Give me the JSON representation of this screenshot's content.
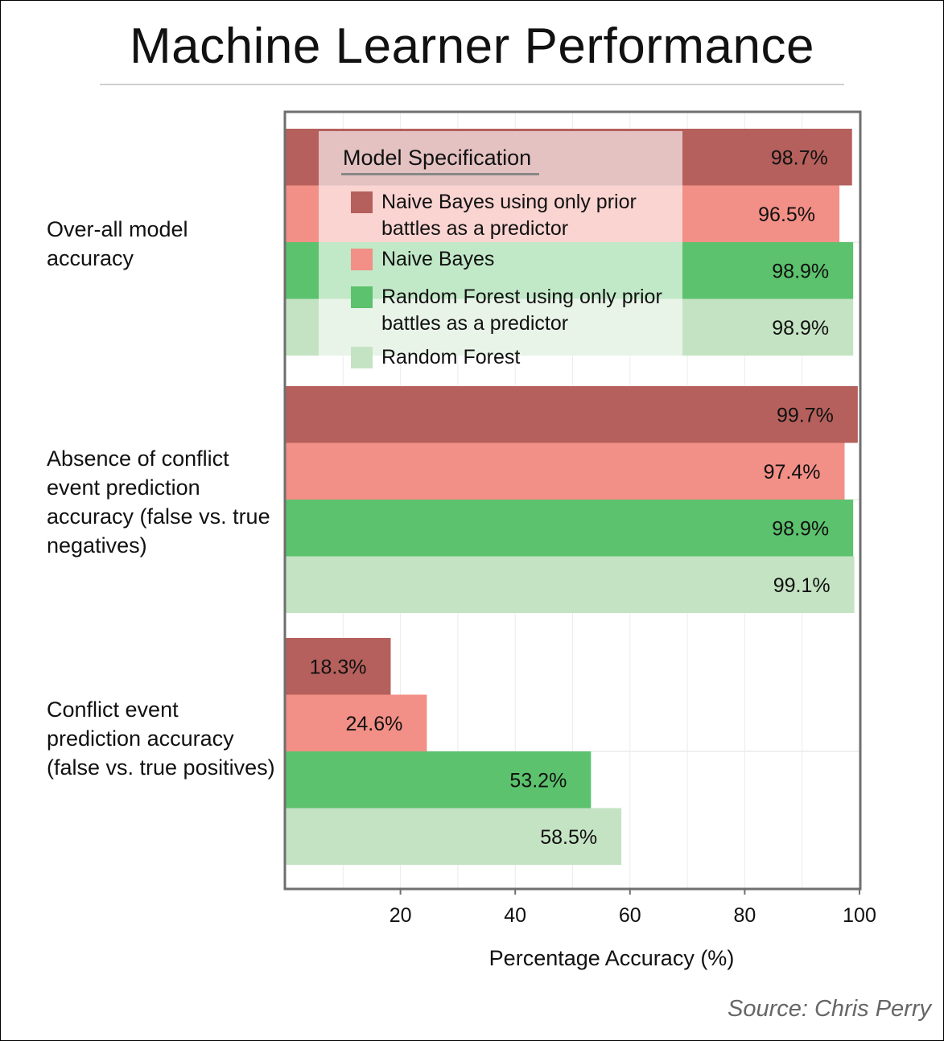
{
  "title": "Machine Learner Performance",
  "source": "Source: Chris Perry",
  "legend": {
    "title": "Model Specification",
    "items": [
      {
        "label": "Naive Bayes using only prior battles as a predictor",
        "color": "#b5605c"
      },
      {
        "label": "Naive Bayes",
        "color": "#f28f86"
      },
      {
        "label": "Random Forest using only prior battles as a predictor",
        "color": "#5cc26d"
      },
      {
        "label": "Random Forest",
        "color": "#c4e3c3"
      }
    ]
  },
  "groups": [
    {
      "label": "Over-all model accuracy"
    },
    {
      "label": "Absence of conflict event prediction accuracy (false vs. true negatives)"
    },
    {
      "label": "Conflict event prediction accuracy (false vs. true positives)"
    }
  ],
  "chart_data": {
    "type": "bar",
    "orientation": "horizontal",
    "title": "Machine Learner Performance",
    "xlabel": "Percentage Accuracy (%)",
    "ylabel": "",
    "xlim": [
      0,
      100
    ],
    "xticks": [
      20,
      40,
      60,
      80,
      100
    ],
    "categories": [
      "Over-all model accuracy",
      "Absence of conflict event prediction accuracy (false vs. true negatives)",
      "Conflict event prediction accuracy (false vs. true positives)"
    ],
    "series": [
      {
        "name": "Naive Bayes using only prior battles as a predictor",
        "color": "#b5605c",
        "values": [
          98.7,
          99.7,
          18.3
        ],
        "labels": [
          "98.7%",
          "99.7%",
          "18.3%"
        ]
      },
      {
        "name": "Naive Bayes",
        "color": "#f28f86",
        "values": [
          96.5,
          97.4,
          24.6
        ],
        "labels": [
          "96.5%",
          "97.4%",
          "24.6%"
        ]
      },
      {
        "name": "Random Forest using only prior battles as a predictor",
        "color": "#5cc26d",
        "values": [
          98.9,
          98.9,
          53.2
        ],
        "labels": [
          "98.9%",
          "98.9%",
          "53.2%"
        ]
      },
      {
        "name": "Random Forest",
        "color": "#c4e3c3",
        "values": [
          98.9,
          99.1,
          58.5
        ],
        "labels": [
          "98.9%",
          "99.1%",
          "58.5%"
        ]
      }
    ],
    "grid": true,
    "legend_position": "top-left inside plot"
  }
}
